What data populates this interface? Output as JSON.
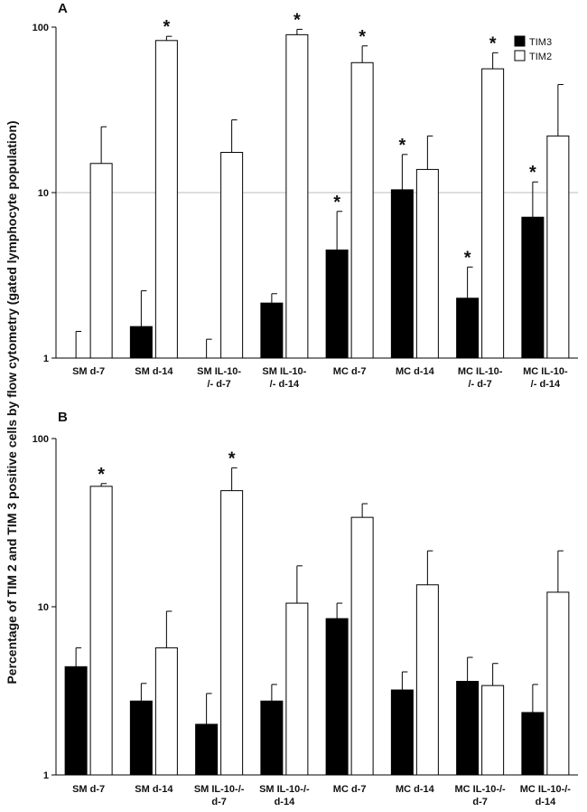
{
  "figure": {
    "y_axis_label": "Percentage of TIM 2 and TIM 3 positive cells by flow cytometry (gated lymphocyte population)"
  },
  "colors": {
    "tim3": "#000000",
    "tim2": "#ffffff",
    "axis": "#000000",
    "gridline": "#bdbdbd"
  },
  "chart_data": [
    {
      "panel": "A",
      "type": "bar",
      "scale": "log",
      "ylim": [
        1,
        100
      ],
      "yticks": [
        "1",
        "10",
        "100"
      ],
      "gridline_at": 10,
      "legend": {
        "placement": "top-right",
        "entries": [
          "TIM3",
          "TIM2"
        ]
      },
      "categories": [
        [
          "SM d-7"
        ],
        [
          "SM d-14"
        ],
        [
          "SM IL-10-",
          "/- d-7"
        ],
        [
          "SM IL-10-",
          "/- d-14"
        ],
        [
          "MC d-7"
        ],
        [
          "MC d-14"
        ],
        [
          "MC IL-10-",
          "/-  d-7"
        ],
        [
          "MC IL-10-",
          "/- d-14"
        ]
      ],
      "series": [
        {
          "name": "TIM3",
          "values": [
            null,
            1.55,
            null,
            2.15,
            4.5,
            10.4,
            2.3,
            7.1
          ],
          "errors": [
            1.45,
            2.55,
            1.3,
            2.45,
            7.7,
            17.0,
            3.55,
            11.6
          ],
          "significant": [
            false,
            false,
            false,
            false,
            true,
            true,
            true,
            true
          ]
        },
        {
          "name": "TIM2",
          "values": [
            15.0,
            83.0,
            17.5,
            90.0,
            61.0,
            13.8,
            56.0,
            22.0
          ],
          "errors": [
            25.0,
            88.0,
            27.5,
            97.0,
            77.0,
            22.0,
            70.0,
            45.0
          ],
          "significant": [
            false,
            true,
            false,
            true,
            true,
            false,
            true,
            false
          ]
        }
      ]
    },
    {
      "panel": "B",
      "type": "bar",
      "scale": "log",
      "ylim": [
        1,
        100
      ],
      "yticks": [
        "1",
        "10",
        "100"
      ],
      "categories": [
        [
          "SM d-7"
        ],
        [
          "SM d-14"
        ],
        [
          "SM IL-10-/-",
          "d-7"
        ],
        [
          "SM IL-10-/-",
          "d-14"
        ],
        [
          "MC d-7"
        ],
        [
          "MC d-14"
        ],
        [
          "MC IL-10-/-",
          "d-7"
        ],
        [
          "MC IL-10-/-",
          "d-14"
        ]
      ],
      "series": [
        {
          "name": "TIM3",
          "values": [
            4.4,
            2.75,
            2.0,
            2.75,
            8.5,
            3.2,
            3.6,
            2.35
          ],
          "errors": [
            5.7,
            3.5,
            3.05,
            3.45,
            10.5,
            4.1,
            5.0,
            3.45
          ],
          "significant": [
            false,
            false,
            false,
            false,
            false,
            false,
            false,
            false
          ]
        },
        {
          "name": "TIM2",
          "values": [
            52.0,
            5.7,
            49.0,
            10.5,
            34.0,
            13.5,
            3.4,
            12.2
          ],
          "errors": [
            54.0,
            9.4,
            67.0,
            17.5,
            41.0,
            21.5,
            4.6,
            21.5
          ],
          "significant": [
            true,
            false,
            true,
            false,
            false,
            false,
            false,
            false
          ]
        }
      ]
    }
  ]
}
